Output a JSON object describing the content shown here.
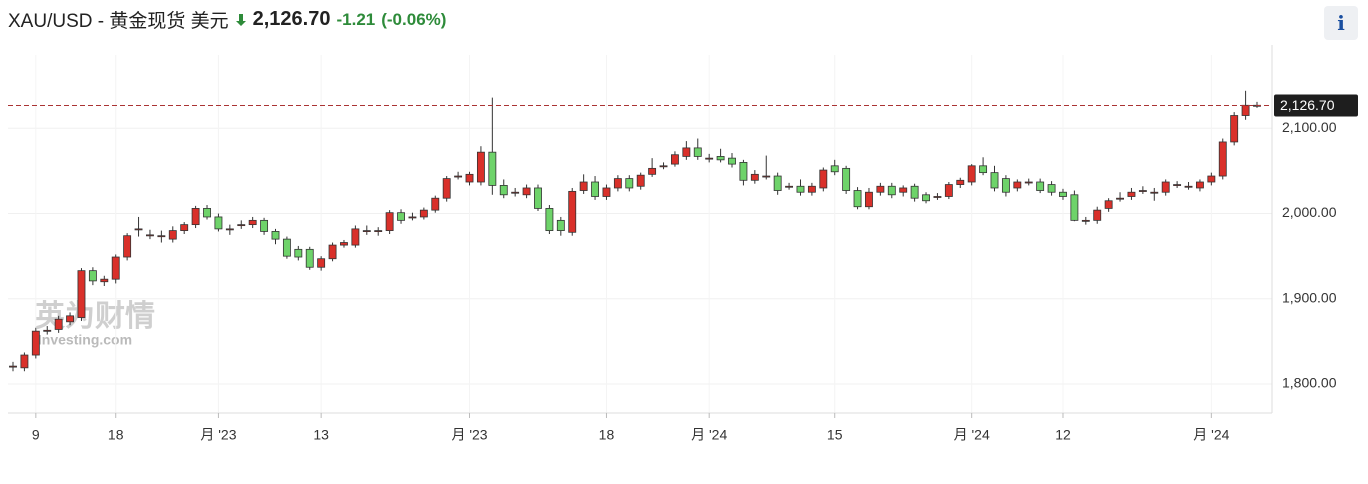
{
  "header": {
    "symbol": "XAU/USD - 黄金现货 美元",
    "price": "2,126.70",
    "change": "-1.21",
    "change_pct": "(-0.06%)"
  },
  "watermark": {
    "cn": "英为财情",
    "en": "Investing.com"
  },
  "chart_data": {
    "type": "candlestick",
    "categories": [
      null,
      null,
      "9",
      null,
      null,
      null,
      null,
      null,
      null,
      "18",
      null,
      null,
      null,
      null,
      null,
      null,
      null,
      null,
      "月 '23",
      null,
      null,
      null,
      null,
      null,
      null,
      null,
      null,
      "13",
      null,
      null,
      null,
      null,
      null,
      null,
      null,
      null,
      null,
      null,
      null,
      null,
      "月 '23",
      null,
      null,
      null,
      null,
      null,
      null,
      null,
      null,
      null,
      null,
      null,
      "18",
      null,
      null,
      null,
      null,
      null,
      null,
      null,
      null,
      "月 '24",
      null,
      null,
      null,
      null,
      null,
      null,
      null,
      null,
      null,
      null,
      "15",
      null,
      null,
      null,
      null,
      null,
      null,
      null,
      null,
      null,
      null,
      null,
      "月 '24",
      null,
      null,
      null,
      null,
      null,
      null,
      null,
      "12",
      null,
      null,
      null,
      null,
      null,
      null,
      null,
      null,
      null,
      null,
      null,
      null,
      "月 '24",
      null,
      null,
      null,
      null
    ],
    "open": [
      1820,
      1819,
      1834,
      1863,
      1864,
      1873,
      1878,
      1933,
      1920,
      1923,
      1949,
      1982,
      1975,
      1974,
      1970,
      1980,
      1987,
      2006,
      1996,
      1982,
      1987,
      1987,
      1992,
      1979,
      1970,
      1958,
      1958,
      1937,
      1947,
      1963,
      1963,
      1980,
      1980,
      1980,
      2001,
      1996,
      1996,
      2004,
      2018,
      2044,
      2037,
      2037,
      2072,
      2033,
      2025,
      2022,
      2030,
      2006,
      1992,
      1978,
      2027,
      2037,
      2020,
      2030,
      2041,
      2032,
      2046,
      2056,
      2058,
      2067,
      2077,
      2065,
      2067,
      2065,
      2060,
      2039,
      2044,
      2044,
      2032,
      2032,
      2025,
      2030,
      2056,
      2053,
      2027,
      2008,
      2025,
      2032,
      2025,
      2032,
      2022,
      2020,
      2020,
      2034,
      2037,
      2056,
      2048,
      2041,
      2030,
      2037,
      2037,
      2034,
      2025,
      2022,
      1992,
      1992,
      2006,
      2018,
      2020,
      2027,
      2025,
      2025,
      2034,
      2032,
      2030,
      2037,
      2044,
      2084,
      2115,
      2127
    ],
    "high": [
      1826,
      1837,
      1866,
      1868,
      1880,
      1884,
      1936,
      1937,
      1927,
      1952,
      1977,
      1996,
      1981,
      1980,
      1985,
      1990,
      2009,
      2010,
      2000,
      1987,
      1992,
      1996,
      1995,
      1982,
      1973,
      1962,
      1961,
      1950,
      1966,
      1969,
      1986,
      1986,
      1984,
      2004,
      2005,
      2001,
      2007,
      2021,
      2044,
      2049,
      2049,
      2079,
      2136,
      2040,
      2030,
      2034,
      2034,
      2010,
      1996,
      2030,
      2046,
      2044,
      2034,
      2045,
      2045,
      2048,
      2065,
      2060,
      2073,
      2085,
      2088,
      2070,
      2076,
      2071,
      2063,
      2051,
      2068,
      2048,
      2036,
      2040,
      2036,
      2054,
      2063,
      2056,
      2031,
      2030,
      2036,
      2036,
      2033,
      2035,
      2025,
      2024,
      2037,
      2042,
      2058,
      2066,
      2056,
      2045,
      2040,
      2041,
      2041,
      2038,
      2029,
      2027,
      1996,
      2008,
      2018,
      2025,
      2030,
      2032,
      2030,
      2040,
      2038,
      2037,
      2040,
      2048,
      2088,
      2119,
      2144,
      2131
    ],
    "low": [
      1815,
      1815,
      1830,
      1858,
      1860,
      1869,
      1874,
      1916,
      1915,
      1918,
      1945,
      1973,
      1970,
      1966,
      1966,
      1976,
      1983,
      1993,
      1979,
      1975,
      1982,
      1983,
      1975,
      1964,
      1947,
      1945,
      1934,
      1933,
      1944,
      1960,
      1960,
      1975,
      1974,
      1976,
      1988,
      1992,
      1993,
      2001,
      2014,
      2040,
      2033,
      2033,
      2022,
      2018,
      2020,
      2018,
      2003,
      1976,
      1974,
      1974,
      2023,
      2016,
      2016,
      2026,
      2026,
      2028,
      2043,
      2052,
      2055,
      2063,
      2063,
      2060,
      2060,
      2054,
      2033,
      2035,
      2040,
      2022,
      2028,
      2021,
      2021,
      2026,
      2045,
      2023,
      2005,
      2005,
      2021,
      2018,
      2020,
      2014,
      2012,
      2016,
      2017,
      2030,
      2033,
      2045,
      2026,
      2020,
      2026,
      2033,
      2024,
      2021,
      2016,
      1991,
      1987,
      1988,
      2002,
      2014,
      2016,
      2023,
      2015,
      2021,
      2030,
      2028,
      2026,
      2033,
      2040,
      2080,
      2110,
      2124
    ],
    "close": [
      1821,
      1834,
      1862,
      1863,
      1876,
      1880,
      1933,
      1921,
      1923,
      1949,
      1974,
      1982,
      1975,
      1974,
      1980,
      1987,
      2006,
      1996,
      1982,
      1982,
      1987,
      1992,
      1979,
      1970,
      1950,
      1949,
      1937,
      1947,
      1963,
      1966,
      1982,
      1980,
      1980,
      2001,
      1992,
      1996,
      2004,
      2018,
      2041,
      2044,
      2046,
      2072,
      2033,
      2022,
      2025,
      2030,
      2006,
      1980,
      1980,
      2026,
      2037,
      2020,
      2030,
      2041,
      2030,
      2045,
      2053,
      2056,
      2069,
      2077,
      2067,
      2065,
      2063,
      2058,
      2039,
      2046,
      2044,
      2027,
      2032,
      2025,
      2032,
      2051,
      2049,
      2027,
      2008,
      2025,
      2032,
      2022,
      2030,
      2018,
      2015,
      2020,
      2034,
      2039,
      2056,
      2048,
      2030,
      2025,
      2037,
      2037,
      2027,
      2025,
      2020,
      1992,
      1992,
      2004,
      2015,
      2018,
      2025,
      2027,
      2025,
      2037,
      2034,
      2032,
      2037,
      2044,
      2084,
      2115,
      2127,
      2127
    ],
    "up_color": "#d9302a",
    "down_color": "#6ed36a",
    "last_price": {
      "value": 2126.7,
      "label": "2,126.70"
    },
    "ylim": [
      1766,
      2186
    ],
    "yticks": [
      {
        "value": 1800,
        "label": "1,800.00"
      },
      {
        "value": 1900,
        "label": "1,900.00"
      },
      {
        "value": 2000,
        "label": "2,000.00"
      },
      {
        "value": 2100,
        "label": "2,100.00"
      }
    ],
    "grid": true
  }
}
